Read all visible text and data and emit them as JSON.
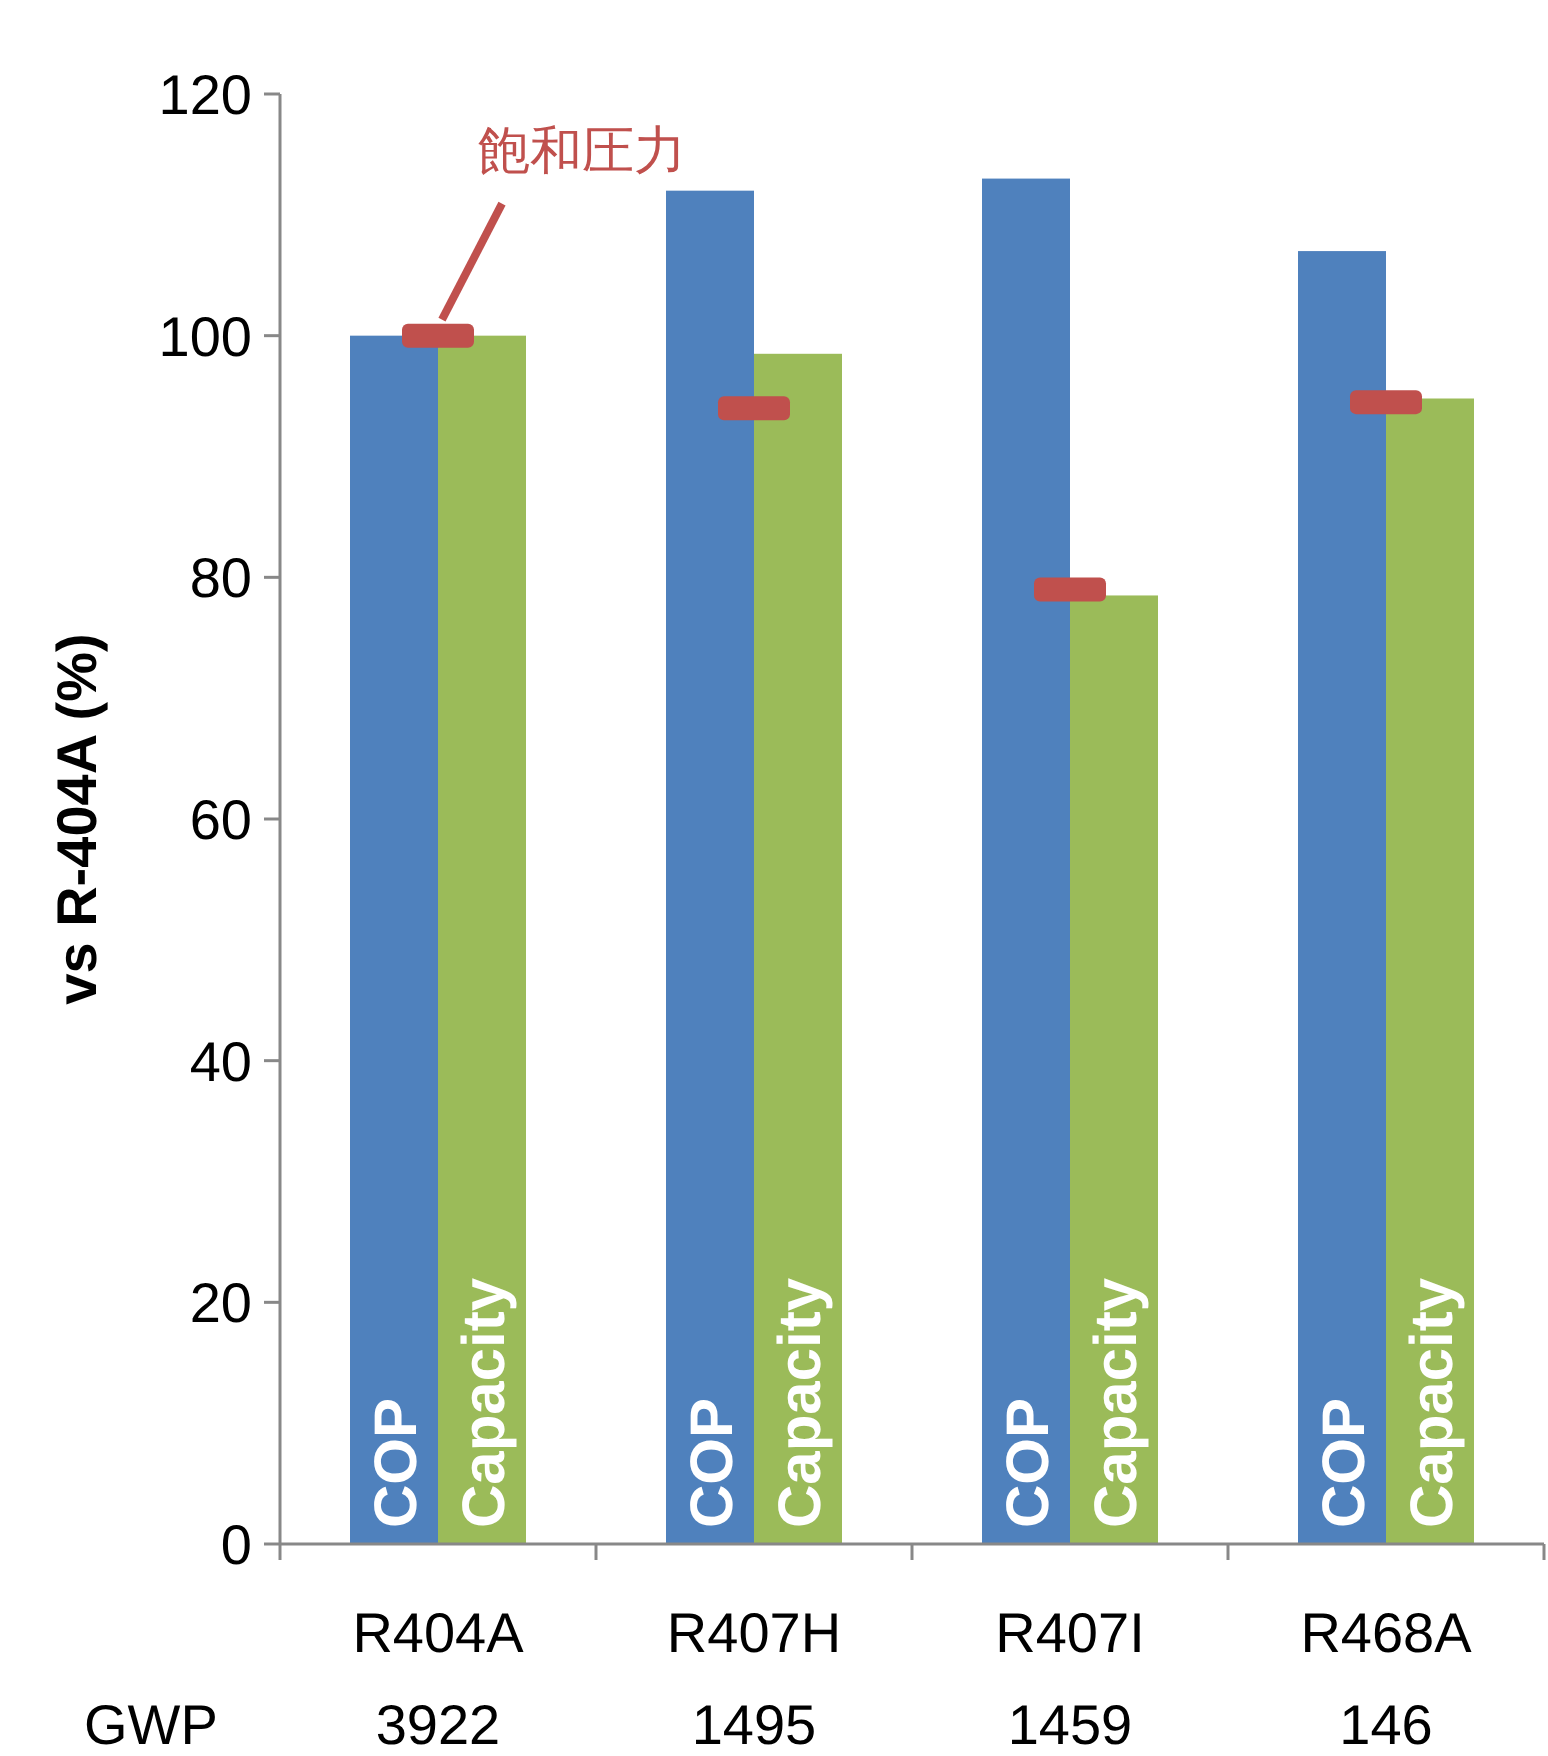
{
  "chart_data": {
    "type": "bar",
    "ylabel": "vs R-404A (%)",
    "categories": [
      "R404A",
      "R407H",
      "R407I",
      "R468A"
    ],
    "series": [
      {
        "name": "COP",
        "color": "#4f81bd",
        "values": [
          100,
          112,
          113,
          107
        ]
      },
      {
        "name": "Capacity",
        "color": "#9bbb59",
        "values": [
          100,
          98.5,
          78.5,
          94.8
        ]
      },
      {
        "name": "飽和圧力",
        "type": "scatter",
        "color": "#c0504d",
        "values": [
          100,
          94,
          79,
          94.5
        ]
      }
    ],
    "ylim": [
      0,
      120
    ],
    "yticks": [
      0,
      20,
      40,
      60,
      80,
      100,
      120
    ],
    "grid": false,
    "annotations": [
      "GWP",
      "3922",
      "1495",
      "1459",
      "146"
    ]
  }
}
